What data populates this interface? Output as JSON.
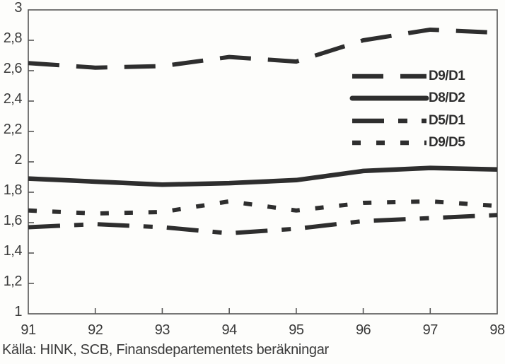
{
  "source_note": "Källa: HINK, SCB, Finansdepartementets beräkningar",
  "colors": {
    "line": "#2e2e2e",
    "frame": "#565656",
    "text": "#3a3a3a"
  },
  "chart_data": {
    "type": "line",
    "title": "",
    "xlabel": "",
    "ylabel": "",
    "x": [
      91,
      92,
      93,
      94,
      95,
      96,
      97,
      98
    ],
    "x_labels": [
      "91",
      "92",
      "93",
      "94",
      "95",
      "96",
      "97",
      "98"
    ],
    "xlim": [
      91,
      98
    ],
    "ylim": [
      1,
      3
    ],
    "y_ticks": [
      {
        "label": "3",
        "value": 3.0
      },
      {
        "label": "2,8",
        "value": 2.8
      },
      {
        "label": "2,6",
        "value": 2.6
      },
      {
        "label": "2,4",
        "value": 2.4
      },
      {
        "label": "2,2",
        "value": 2.2
      },
      {
        "label": "2",
        "value": 2.0
      },
      {
        "label": "1,8",
        "value": 1.8
      },
      {
        "label": "1,6",
        "value": 1.6
      },
      {
        "label": "1,4",
        "value": 1.4
      },
      {
        "label": "1,2",
        "value": 1.2
      },
      {
        "label": "1",
        "value": 1.0
      }
    ],
    "grid": false,
    "legend_position": "inside-upper-right",
    "series": [
      {
        "name": "D9/D1",
        "style": "long-dash",
        "values": [
          2.65,
          2.62,
          2.63,
          2.69,
          2.66,
          2.8,
          2.87,
          2.85
        ]
      },
      {
        "name": "D8/D2",
        "style": "solid",
        "values": [
          1.89,
          1.87,
          1.85,
          1.86,
          1.88,
          1.94,
          1.96,
          1.95
        ]
      },
      {
        "name": "D5/D1",
        "style": "dash-short-dash",
        "values": [
          1.57,
          1.59,
          1.57,
          1.53,
          1.56,
          1.61,
          1.63,
          1.65
        ]
      },
      {
        "name": "D9/D5",
        "style": "short-dash",
        "values": [
          1.68,
          1.66,
          1.67,
          1.74,
          1.68,
          1.73,
          1.74,
          1.71
        ]
      }
    ]
  }
}
